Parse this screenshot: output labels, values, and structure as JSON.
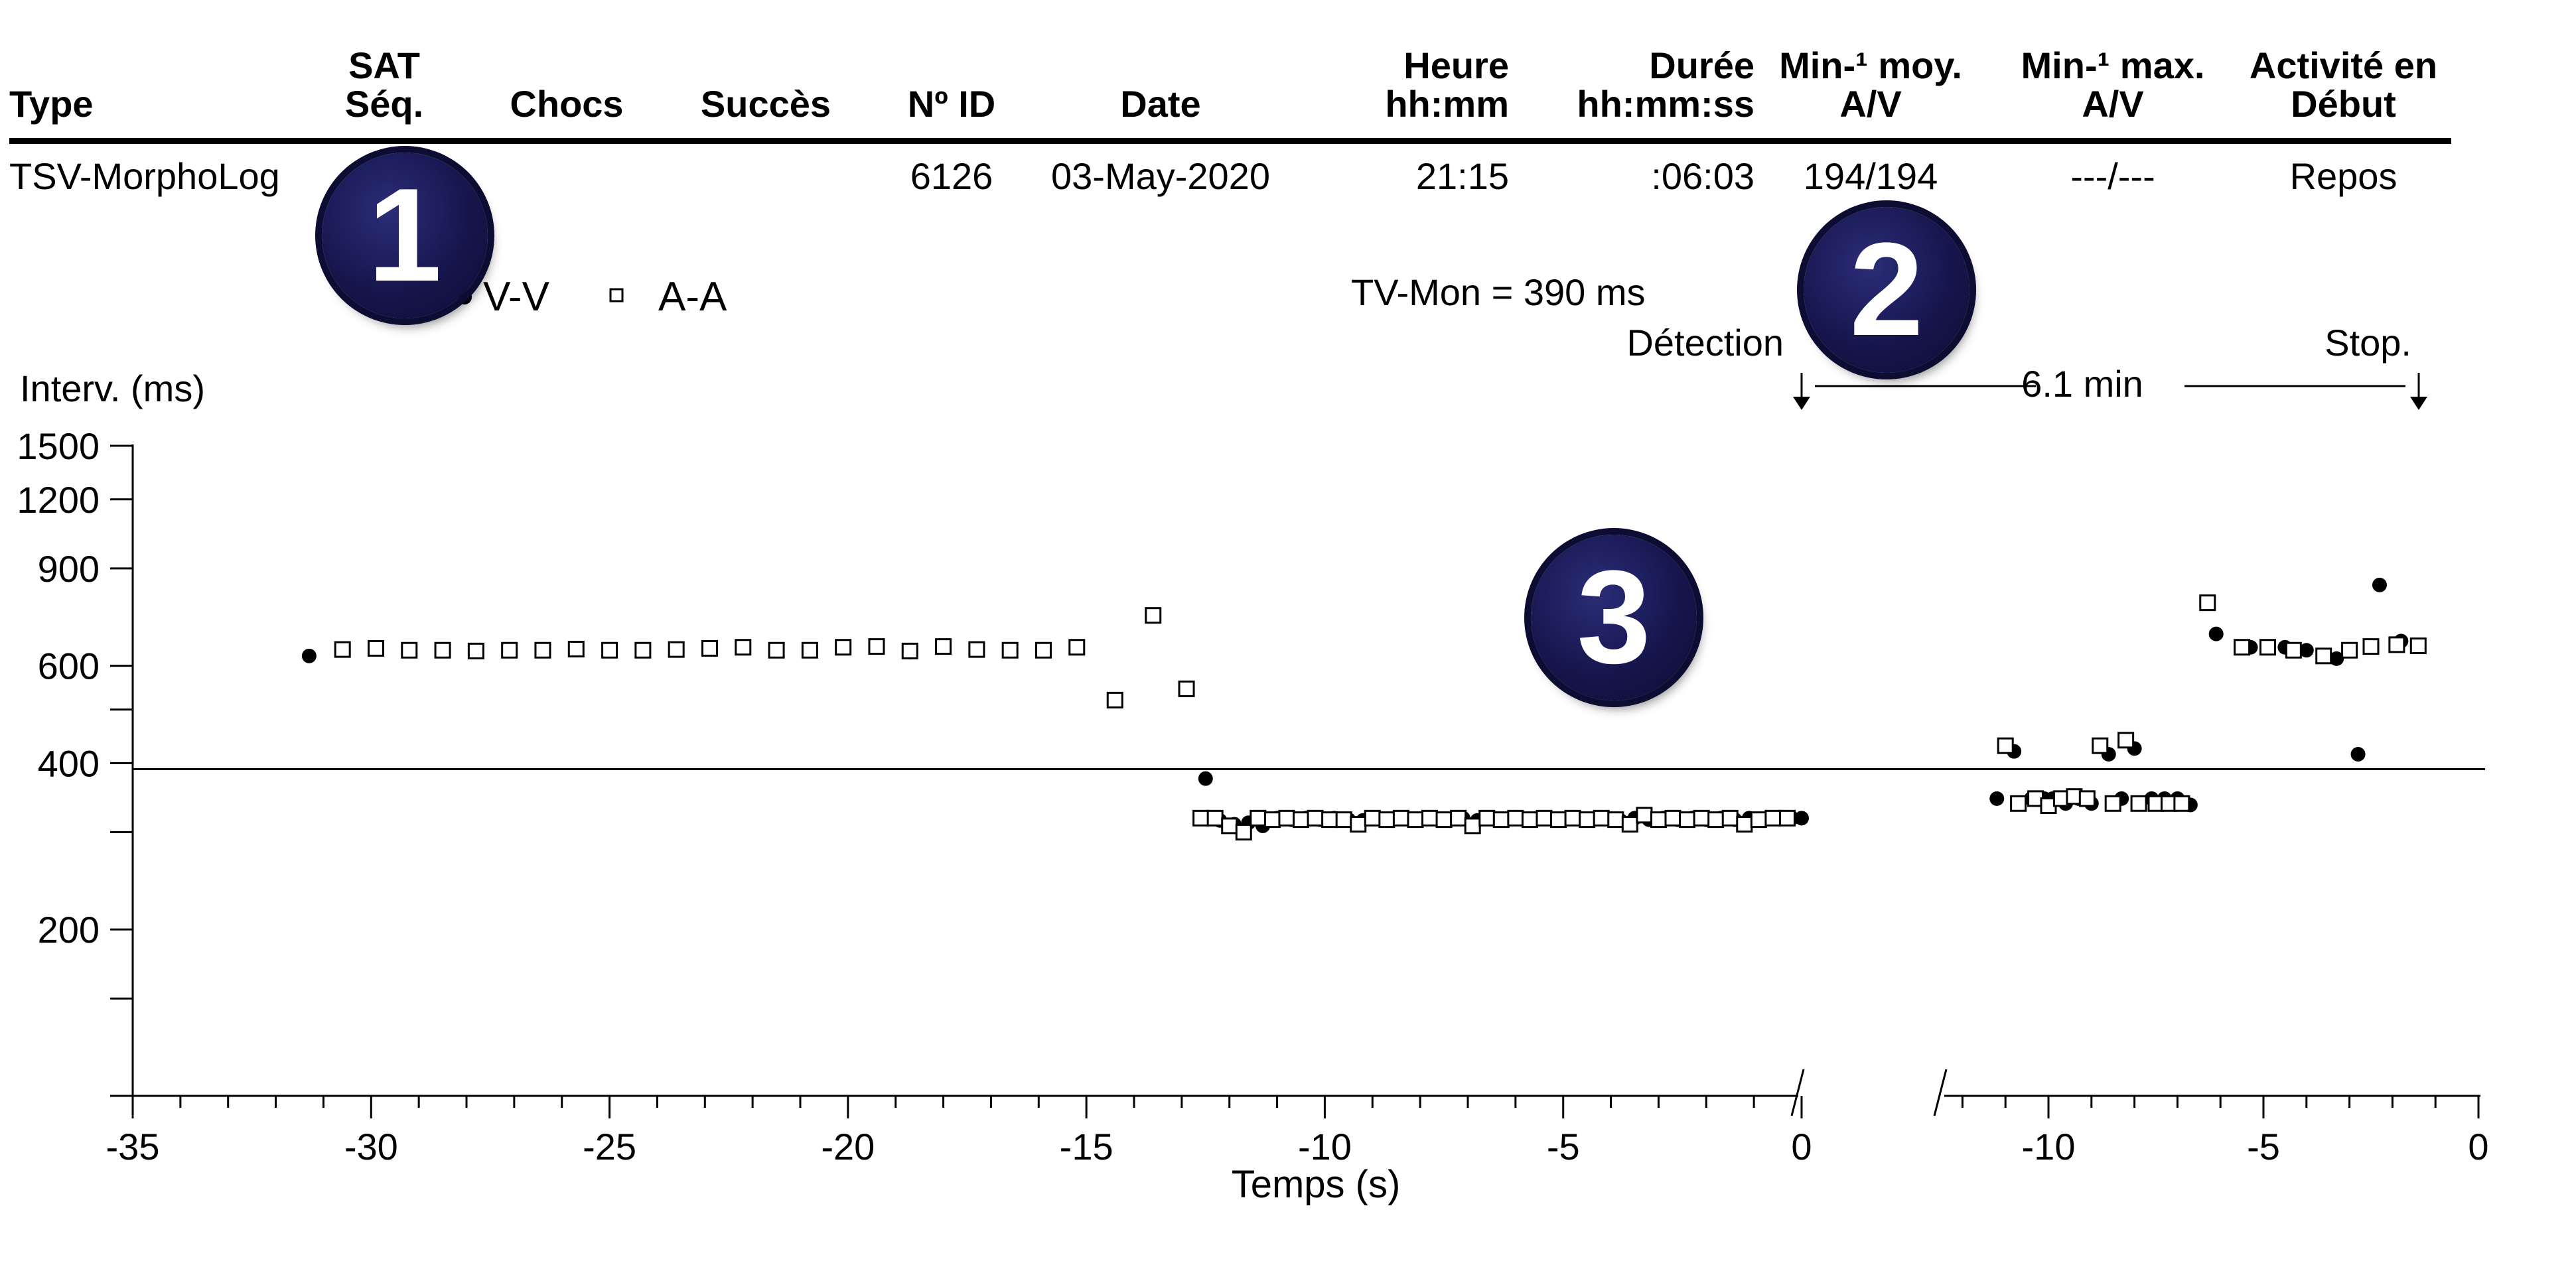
{
  "table": {
    "headers": [
      {
        "key": "type",
        "lines": [
          "Type"
        ]
      },
      {
        "key": "sat",
        "lines": [
          "SAT",
          "Séq."
        ]
      },
      {
        "key": "chocs",
        "lines": [
          "Chocs"
        ]
      },
      {
        "key": "succes",
        "lines": [
          "Succès"
        ]
      },
      {
        "key": "id",
        "lines": [
          "Nº ID"
        ]
      },
      {
        "key": "date",
        "lines": [
          "Date"
        ]
      },
      {
        "key": "heure",
        "lines": [
          "Heure",
          "hh:mm"
        ]
      },
      {
        "key": "duree",
        "lines": [
          "Durée",
          "hh:mm:ss"
        ]
      },
      {
        "key": "moy",
        "lines": [
          "Min-¹ moy.",
          "A/V"
        ]
      },
      {
        "key": "max",
        "lines": [
          "Min-¹ max.",
          "A/V"
        ]
      },
      {
        "key": "activite",
        "lines": [
          "Activité en",
          "Début"
        ]
      }
    ],
    "row": {
      "type": "TSV-MorphoLog",
      "sat": "",
      "chocs": "",
      "succes": "",
      "id": "6126",
      "date": "03-May-2020",
      "heure": "21:15",
      "duree": ":06:03",
      "moy": "194/194",
      "max": "---/---",
      "activite": "Repos"
    }
  },
  "badges": {
    "one": "1",
    "two": "2",
    "three": "3"
  },
  "colors": {
    "badge": "#16164d",
    "ink": "#000000",
    "background": "#ffffff"
  },
  "chart_data": {
    "type": "scatter",
    "title": "",
    "ylabel": "Interv. (ms)",
    "xlabel": "Temps (s)",
    "ylim": [
      0,
      1500
    ],
    "y_scale": "log",
    "y_tick_labels": [
      "1500",
      "1200",
      "900",
      "600",
      "400",
      "200"
    ],
    "y_tick_values": [
      1500,
      1200,
      900,
      600,
      400,
      200
    ],
    "y_minor_ticks": [
      500,
      300,
      150
    ],
    "legend": {
      "placement": "top-left",
      "entries": [
        {
          "marker": "filled-circle",
          "label": "V-V"
        },
        {
          "marker": "open-square",
          "label": "A-A"
        }
      ]
    },
    "threshold": {
      "label": "TV-Mon = 390 ms",
      "value": 390
    },
    "segments": [
      {
        "name": "Détection",
        "xlim": [
          -35,
          0
        ],
        "tick_labels": [
          "-35",
          "-30",
          "-25",
          "-20",
          "-15",
          "-10",
          "-5",
          "0"
        ],
        "tick_values": [
          -35,
          -30,
          -25,
          -20,
          -15,
          -10,
          -5,
          0
        ]
      },
      {
        "name": "Stop.",
        "xlim": [
          -12.5,
          0
        ],
        "tick_labels": [
          "-10",
          "-5",
          "0"
        ],
        "tick_values": [
          -10,
          -5,
          0
        ]
      }
    ],
    "markers": {
      "start": "Détection",
      "end": "Stop.",
      "duration": "6.1 min"
    },
    "series": [
      {
        "marker": "filled-circle",
        "label": "V-V",
        "segment": 0,
        "x": [
          -31.3,
          -30.6,
          -29.9,
          -29.2,
          -28.5,
          -27.8,
          -27.1,
          -26.4,
          -25.7,
          -25.0,
          -24.3,
          -23.6,
          -22.9,
          -22.2,
          -21.5,
          -20.8,
          -20.1,
          -19.4,
          -18.7,
          -18.0,
          -17.3,
          -16.6,
          -15.9,
          -15.2,
          -14.4,
          -13.6,
          -12.9,
          -12.5,
          -12.2,
          -11.9,
          -11.6,
          -11.3,
          -11.0,
          -10.7,
          -10.4,
          -10.1,
          -9.8,
          -9.5,
          -9.2,
          -8.9,
          -8.6,
          -8.3,
          -8.0,
          -7.7,
          -7.4,
          -7.1,
          -6.8,
          -6.5,
          -6.2,
          -5.9,
          -5.6,
          -5.3,
          -5.0,
          -4.7,
          -4.4,
          -4.1,
          -3.8,
          -3.5,
          -3.2,
          -2.9,
          -2.6,
          -2.3,
          -2.0,
          -1.7,
          -1.4,
          -1.1,
          -0.8,
          -0.5,
          -0.2,
          0.0
        ],
        "y": [
          625,
          640,
          645,
          640,
          640,
          638,
          640,
          638,
          643,
          640,
          640,
          642,
          643,
          648,
          640,
          640,
          648,
          650,
          635,
          650,
          642,
          640,
          640,
          650,
          520,
          740,
          545,
          375,
          315,
          310,
          312,
          308,
          318,
          316,
          318,
          316,
          318,
          316,
          315,
          318,
          316,
          318,
          316,
          318,
          316,
          318,
          315,
          318,
          316,
          318,
          316,
          318,
          316,
          318,
          316,
          318,
          315,
          318,
          316,
          318,
          316,
          318,
          316,
          318,
          316,
          318,
          316,
          318,
          318,
          318
        ]
      },
      {
        "marker": "open-square",
        "label": "A-A",
        "segment": 0,
        "x": [
          -30.6,
          -29.9,
          -29.2,
          -28.5,
          -27.8,
          -27.1,
          -26.4,
          -25.7,
          -25.0,
          -24.3,
          -23.6,
          -22.9,
          -22.2,
          -21.5,
          -20.8,
          -20.1,
          -19.4,
          -18.7,
          -18.0,
          -17.3,
          -16.6,
          -15.9,
          -15.2,
          -14.4,
          -13.6,
          -12.9,
          -12.6,
          -12.3,
          -12.0,
          -11.7,
          -11.4,
          -11.1,
          -10.8,
          -10.5,
          -10.2,
          -9.9,
          -9.6,
          -9.3,
          -9.0,
          -8.7,
          -8.4,
          -8.1,
          -7.8,
          -7.5,
          -7.2,
          -6.9,
          -6.6,
          -6.3,
          -6.0,
          -5.7,
          -5.4,
          -5.1,
          -4.8,
          -4.5,
          -4.2,
          -3.9,
          -3.6,
          -3.3,
          -3.0,
          -2.7,
          -2.4,
          -2.1,
          -1.8,
          -1.5,
          -1.2,
          -0.9,
          -0.6,
          -0.3
        ],
        "y": [
          642,
          645,
          640,
          640,
          638,
          640,
          640,
          643,
          640,
          640,
          642,
          645,
          648,
          640,
          640,
          648,
          650,
          638,
          650,
          642,
          640,
          640,
          648,
          520,
          740,
          545,
          318,
          318,
          308,
          300,
          318,
          316,
          318,
          316,
          318,
          316,
          316,
          310,
          318,
          316,
          318,
          316,
          318,
          316,
          318,
          308,
          318,
          316,
          318,
          316,
          318,
          316,
          318,
          316,
          318,
          316,
          310,
          322,
          316,
          318,
          316,
          318,
          316,
          318,
          310,
          316,
          318,
          318
        ]
      },
      {
        "marker": "filled-circle",
        "label": "V-V",
        "segment": 1,
        "x": [
          -11.2,
          -10.8,
          -10.4,
          -10.1,
          -9.9,
          -9.6,
          -9.3,
          -9.0,
          -8.6,
          -8.3,
          -8.0,
          -7.6,
          -7.3,
          -7.0,
          -6.7,
          -6.1,
          -5.3,
          -4.5,
          -4.0,
          -3.3,
          -2.8,
          -2.3,
          -1.8
        ],
        "y": [
          345,
          420,
          345,
          345,
          345,
          338,
          345,
          338,
          415,
          345,
          425,
          345,
          345,
          345,
          336,
          685,
          648,
          648,
          640,
          618,
          415,
          840,
          665
        ]
      },
      {
        "marker": "open-square",
        "label": "A-A",
        "segment": 1,
        "x": [
          -11.0,
          -10.7,
          -10.3,
          -10.0,
          -9.7,
          -9.4,
          -9.1,
          -8.8,
          -8.5,
          -8.2,
          -7.9,
          -7.5,
          -7.2,
          -6.9,
          -6.3,
          -5.5,
          -4.9,
          -4.3,
          -3.6,
          -3.0,
          -2.5,
          -1.9,
          -1.4
        ],
        "y": [
          430,
          338,
          345,
          335,
          345,
          348,
          345,
          430,
          338,
          440,
          338,
          338,
          338,
          338,
          780,
          648,
          648,
          640,
          625,
          640,
          650,
          655,
          652
        ]
      }
    ]
  }
}
